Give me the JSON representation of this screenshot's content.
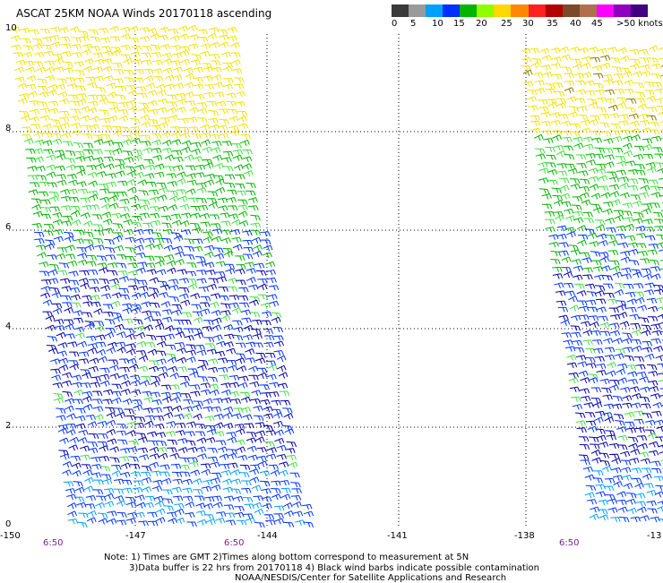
{
  "title": "ASCAT 25KM NOAA Winds 20170118 ascending",
  "legend": {
    "labels": [
      "0",
      "5",
      "10",
      "15",
      "20",
      "25",
      "30",
      "35",
      "40",
      "45",
      ">50 knots"
    ],
    "colors": [
      "#3a3a3a",
      "#9a9a9a",
      "#00a0ff",
      "#0030ff",
      "#00b400",
      "#90ff00",
      "#ffd800",
      "#ff8800",
      "#ff2020",
      "#b40000",
      "#7a4a2a",
      "#b07050",
      "#ff00ff",
      "#9000c0",
      "#400080"
    ]
  },
  "axes": {
    "x_ticks": [
      "-150",
      "-147",
      "-144",
      "-141",
      "-138",
      "-13"
    ],
    "y_ticks": [
      "10",
      "8",
      "6",
      "4",
      "2",
      "0"
    ],
    "time_labels": [
      "6:50",
      "6:50",
      "6:50"
    ]
  },
  "notes": [
    "Note: 1) Times are GMT 2)Times along bottom correspond to measurement at 5N",
    "3)Data buffer is 22 hrs from 20170118 4) Black wind barbs indicate possible contamination",
    "NOAA/NESDIS/Center for Satellite Applications and Research"
  ],
  "wind_colors": {
    "yellow": "#f5e100",
    "green": "#00b400",
    "lightgreen": "#40e040",
    "blue": "#0033ff",
    "darkblue": "#0000aa",
    "cyan": "#00a0ff",
    "olive": "#8a7a00"
  },
  "swaths": [
    {
      "name": "left-swath"
    },
    {
      "name": "right-swath"
    }
  ]
}
